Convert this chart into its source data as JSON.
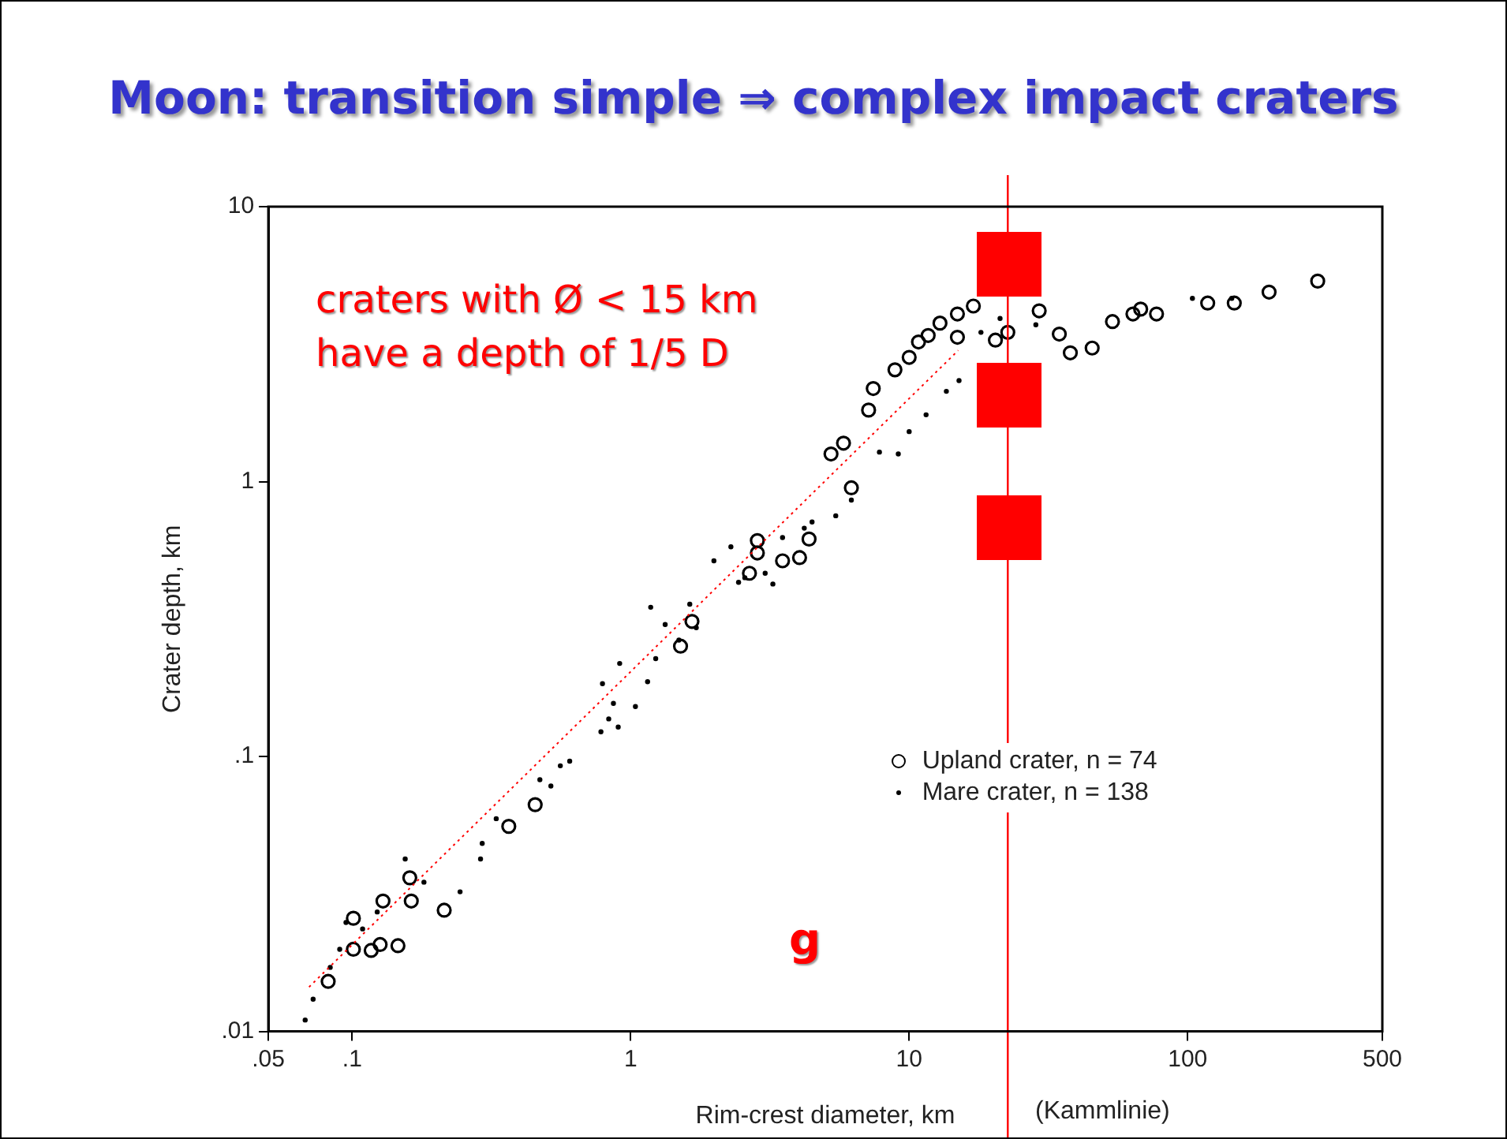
{
  "chart_data": {
    "type": "scatter",
    "title": "Moon: transition simple ⇒ complex impact craters",
    "xlabel": "Rim-crest diameter, km",
    "ylabel": "Crater depth, km",
    "log": "xy",
    "xlim": [
      0.05,
      500
    ],
    "ylim": [
      0.01,
      10
    ],
    "xticks": [
      {
        "value": 0.05,
        "label": ".05"
      },
      {
        "value": 0.1,
        "label": ".1"
      },
      1,
      10,
      100,
      500
    ],
    "yticks": [
      {
        "value": 0.01,
        "label": ".01"
      },
      {
        "value": 0.1,
        "label": ".1"
      },
      1,
      10
    ],
    "legend": "bottom right",
    "marker": "circle",
    "series": [
      {
        "name": "Upland crater, n = 74",
        "color": "#000000",
        "x": [
          0.082,
          0.101,
          0.101,
          0.117,
          0.126,
          0.146,
          0.129,
          0.163,
          0.161,
          0.214,
          0.365,
          0.454,
          1.51,
          1.66,
          2.67,
          2.85,
          2.85,
          3.51,
          4.04,
          4.37,
          6.2,
          5.24,
          5.81,
          7.15,
          7.43,
          8.89,
          10,
          10.8,
          11.7,
          12.9,
          14.9,
          17,
          14.9,
          20.4,
          22.6,
          29.3,
          34.6,
          37.9,
          45.4,
          53.7,
          63.6,
          67.8,
          77.3,
          118,
          147,
          196,
          293
        ],
        "values": [
          0.0152,
          0.0199,
          0.0258,
          0.0197,
          0.0207,
          0.0205,
          0.0298,
          0.0298,
          0.0362,
          0.0276,
          0.0557,
          0.0668,
          0.252,
          0.31,
          0.464,
          0.55,
          0.61,
          0.515,
          0.529,
          0.618,
          0.949,
          1.26,
          1.38,
          1.82,
          2.18,
          2.55,
          2.83,
          3.22,
          3.4,
          3.77,
          4.07,
          4.35,
          3.35,
          3.27,
          3.49,
          4.18,
          3.44,
          2.94,
          3.06,
          3.82,
          4.07,
          4.24,
          4.07,
          4.46,
          4.46,
          4.89,
          5.36
        ]
      },
      {
        "name": "Mare crater, n = 138",
        "color": "#000000",
        "x": [
          0.0678,
          0.0724,
          0.0834,
          0.0902,
          0.095,
          0.109,
          0.123,
          0.181,
          0.155,
          0.244,
          0.289,
          0.293,
          0.329,
          0.472,
          0.517,
          0.559,
          0.604,
          0.782,
          0.834,
          0.902,
          0.792,
          0.867,
          0.913,
          1.04,
          1.15,
          1.18,
          1.23,
          1.33,
          1.49,
          1.63,
          1.72,
          1.99,
          2.29,
          2.44,
          2.57,
          3.04,
          3.24,
          3.51,
          4.2,
          4.48,
          5.45,
          6.2,
          7.82,
          9.14,
          10,
          11.5,
          13.6,
          15.1,
          18.1,
          21.2,
          28.5,
          104,
          144
        ],
        "values": [
          0.011,
          0.0131,
          0.0171,
          0.0199,
          0.0249,
          0.0236,
          0.0272,
          0.0349,
          0.0424,
          0.0322,
          0.0424,
          0.0483,
          0.0594,
          0.0823,
          0.0781,
          0.0925,
          0.0962,
          0.123,
          0.137,
          0.128,
          0.184,
          0.156,
          0.218,
          0.152,
          0.187,
          0.349,
          0.227,
          0.302,
          0.265,
          0.358,
          0.294,
          0.515,
          0.579,
          0.43,
          0.447,
          0.464,
          0.424,
          0.626,
          0.677,
          0.713,
          0.751,
          0.856,
          1.28,
          1.26,
          1.52,
          1.75,
          2.13,
          2.33,
          3.49,
          3.92,
          3.72,
          4.64,
          4.64
        ]
      },
      {
        "type": "line",
        "color": "#ff0000",
        "line_style": "dotted",
        "marker": "none",
        "x": [
          0.07,
          15
        ],
        "values": [
          0.0145,
          3
        ]
      }
    ],
    "ref_lines": [
      {
        "axis": "x",
        "value": 22.6,
        "color": "#ff0000"
      }
    ],
    "annotations": [
      "craters with Ø < 15 km\nhave a depth of 1/5 D",
      "g",
      "(Kammlinie)"
    ]
  }
}
